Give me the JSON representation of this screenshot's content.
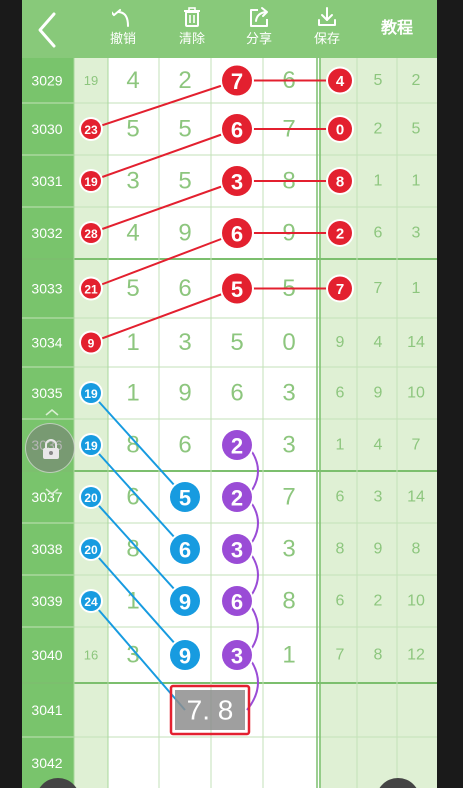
{
  "toolbar": {
    "undo_label": "撤销",
    "clear_label": "清除",
    "share_label": "分享",
    "save_label": "保存",
    "tutorial_label": "教程"
  },
  "colors": {
    "header_green": "#88c97a",
    "number_green": "#8dc67e",
    "red": "#e3202f",
    "blue": "#179be0",
    "purple": "#9a4cd6"
  },
  "rows": [
    {
      "issue": "3029",
      "left": "19",
      "left_style": "plain",
      "digits": [
        "4",
        "2",
        "7",
        "6"
      ],
      "mark": [
        null,
        null,
        "red",
        null
      ],
      "right": [
        "4",
        "5",
        "2"
      ],
      "right_mark": "red"
    },
    {
      "issue": "3030",
      "left": "23",
      "left_style": "red",
      "digits": [
        "5",
        "5",
        "6",
        "7"
      ],
      "mark": [
        null,
        null,
        "red",
        null
      ],
      "right": [
        "0",
        "2",
        "5"
      ],
      "right_mark": "red"
    },
    {
      "issue": "3031",
      "left": "19",
      "left_style": "red",
      "digits": [
        "3",
        "5",
        "3",
        "8"
      ],
      "mark": [
        null,
        null,
        "red",
        null
      ],
      "right": [
        "8",
        "1",
        "1"
      ],
      "right_mark": "red"
    },
    {
      "issue": "3032",
      "left": "28",
      "left_style": "red",
      "digits": [
        "4",
        "9",
        "6",
        "9"
      ],
      "mark": [
        null,
        null,
        "red",
        null
      ],
      "right": [
        "2",
        "6",
        "3"
      ],
      "right_mark": "red"
    },
    {
      "issue": "3033",
      "left": "21",
      "left_style": "red",
      "digits": [
        "5",
        "6",
        "5",
        "5"
      ],
      "mark": [
        null,
        null,
        "red",
        null
      ],
      "right": [
        "7",
        "7",
        "1"
      ],
      "right_mark": "red"
    },
    {
      "issue": "3034",
      "left": "9",
      "left_style": "red",
      "digits": [
        "1",
        "3",
        "5",
        "0"
      ],
      "mark": [
        null,
        null,
        null,
        null
      ],
      "right": [
        "9",
        "4",
        "14"
      ],
      "right_mark": null
    },
    {
      "issue": "3035",
      "left": "19",
      "left_style": "blue",
      "digits": [
        "1",
        "9",
        "6",
        "3"
      ],
      "mark": [
        null,
        null,
        null,
        null
      ],
      "right": [
        "6",
        "9",
        "10"
      ],
      "right_mark": null
    },
    {
      "issue": "3036",
      "left": "19",
      "left_style": "blue",
      "digits": [
        "8",
        "6",
        "2",
        "3"
      ],
      "mark": [
        null,
        null,
        "purple",
        null
      ],
      "right": [
        "1",
        "4",
        "7"
      ],
      "right_mark": null
    },
    {
      "issue": "3037",
      "left": "20",
      "left_style": "blue",
      "digits": [
        "6",
        "5",
        "2",
        "7"
      ],
      "mark": [
        null,
        "blue",
        "purple",
        null
      ],
      "right": [
        "6",
        "3",
        "14"
      ],
      "right_mark": null
    },
    {
      "issue": "3038",
      "left": "20",
      "left_style": "blue",
      "digits": [
        "8",
        "6",
        "3",
        "3"
      ],
      "mark": [
        null,
        "blue",
        "purple",
        null
      ],
      "right": [
        "8",
        "9",
        "8"
      ],
      "right_mark": null
    },
    {
      "issue": "3039",
      "left": "24",
      "left_style": "blue",
      "digits": [
        "1",
        "9",
        "6",
        "8"
      ],
      "mark": [
        null,
        "blue",
        "purple",
        null
      ],
      "right": [
        "6",
        "2",
        "10"
      ],
      "right_mark": null
    },
    {
      "issue": "3040",
      "left": "16",
      "left_style": "plain",
      "digits": [
        "3",
        "9",
        "3",
        "1"
      ],
      "mark": [
        null,
        "blue",
        "purple",
        null
      ],
      "right": [
        "7",
        "8",
        "12"
      ],
      "right_mark": null
    },
    {
      "issue": "3041",
      "left": "",
      "left_style": "none",
      "digits": [
        "",
        "7",
        "8",
        ""
      ],
      "mark": [
        null,
        "predict",
        "predict",
        null
      ],
      "right": [
        "",
        "",
        ""
      ],
      "right_mark": null
    },
    {
      "issue": "3042",
      "left": "",
      "left_style": "none",
      "digits": [
        "",
        "",
        "",
        ""
      ],
      "mark": [
        null,
        null,
        null,
        null
      ],
      "right": [
        "",
        "",
        ""
      ],
      "right_mark": null
    }
  ],
  "prediction_text": "7. 8",
  "connections": [
    {
      "from": [
        1,
        "left"
      ],
      "to": [
        0,
        2
      ],
      "color": "red"
    },
    {
      "from": [
        0,
        2
      ],
      "to": [
        0,
        "right"
      ],
      "color": "red"
    },
    {
      "from": [
        1,
        2
      ],
      "to": [
        1,
        "right"
      ],
      "color": "red"
    },
    {
      "from": [
        2,
        "left"
      ],
      "to": [
        1,
        2
      ],
      "color": "red"
    },
    {
      "from": [
        2,
        2
      ],
      "to": [
        2,
        "right"
      ],
      "color": "red"
    },
    {
      "from": [
        3,
        "left"
      ],
      "to": [
        2,
        2
      ],
      "color": "red"
    },
    {
      "from": [
        3,
        2
      ],
      "to": [
        3,
        "right"
      ],
      "color": "red"
    },
    {
      "from": [
        4,
        "left"
      ],
      "to": [
        3,
        2
      ],
      "color": "red"
    },
    {
      "from": [
        4,
        2
      ],
      "to": [
        4,
        "right"
      ],
      "color": "red"
    },
    {
      "from": [
        5,
        "left"
      ],
      "to": [
        4,
        2
      ],
      "color": "red"
    },
    {
      "from": [
        6,
        "left"
      ],
      "to": [
        8,
        1
      ],
      "color": "blue"
    },
    {
      "from": [
        7,
        "left"
      ],
      "to": [
        9,
        1
      ],
      "color": "blue"
    },
    {
      "from": [
        8,
        "left"
      ],
      "to": [
        10,
        1
      ],
      "color": "blue"
    },
    {
      "from": [
        9,
        "left"
      ],
      "to": [
        11,
        1
      ],
      "color": "blue"
    },
    {
      "from": [
        10,
        "left"
      ],
      "to": [
        12,
        1
      ],
      "color": "blue"
    }
  ],
  "purple_chain": [
    [
      7,
      2
    ],
    [
      8,
      2
    ],
    [
      9,
      2
    ],
    [
      10,
      2
    ],
    [
      11,
      2
    ],
    [
      12,
      2
    ]
  ]
}
